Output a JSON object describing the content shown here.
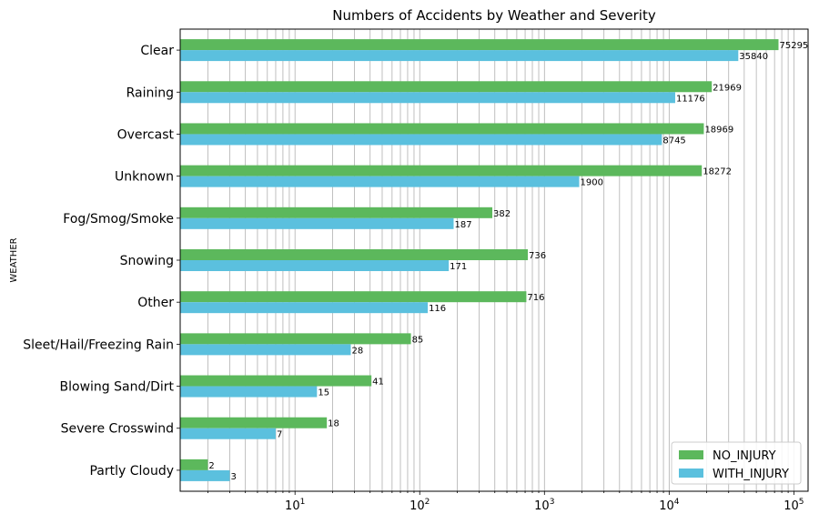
{
  "chart_data": {
    "type": "bar",
    "orientation": "horizontal",
    "title": "Numbers of Accidents by Weather and Severity",
    "ylabel": "WEATHER",
    "xlabel": "",
    "xscale": "log",
    "xlim": [
      1.2,
      130000
    ],
    "x_ticks": [
      {
        "value": 10,
        "base": "10",
        "exp": "1"
      },
      {
        "value": 100,
        "base": "10",
        "exp": "2"
      },
      {
        "value": 1000,
        "base": "10",
        "exp": "3"
      },
      {
        "value": 10000,
        "base": "10",
        "exp": "4"
      },
      {
        "value": 100000,
        "base": "10",
        "exp": "5"
      }
    ],
    "grid": "x-major-and-minor",
    "legend": "bottom-right",
    "categories": [
      "Clear",
      "Raining",
      "Overcast",
      "Unknown",
      "Fog/Smog/Smoke",
      "Snowing",
      "Other",
      "Sleet/Hail/Freezing Rain",
      "Blowing Sand/Dirt",
      "Severe Crosswind",
      "Partly Cloudy"
    ],
    "series": [
      {
        "name": "NO_INJURY",
        "color": "#5cb85c",
        "values": [
          75295,
          21969,
          18969,
          18272,
          382,
          736,
          716,
          85,
          41,
          18,
          2
        ]
      },
      {
        "name": "WITH_INJURY",
        "color": "#5bc0de",
        "values": [
          35840,
          11176,
          8745,
          1900,
          187,
          171,
          116,
          28,
          15,
          7,
          3
        ]
      }
    ]
  }
}
